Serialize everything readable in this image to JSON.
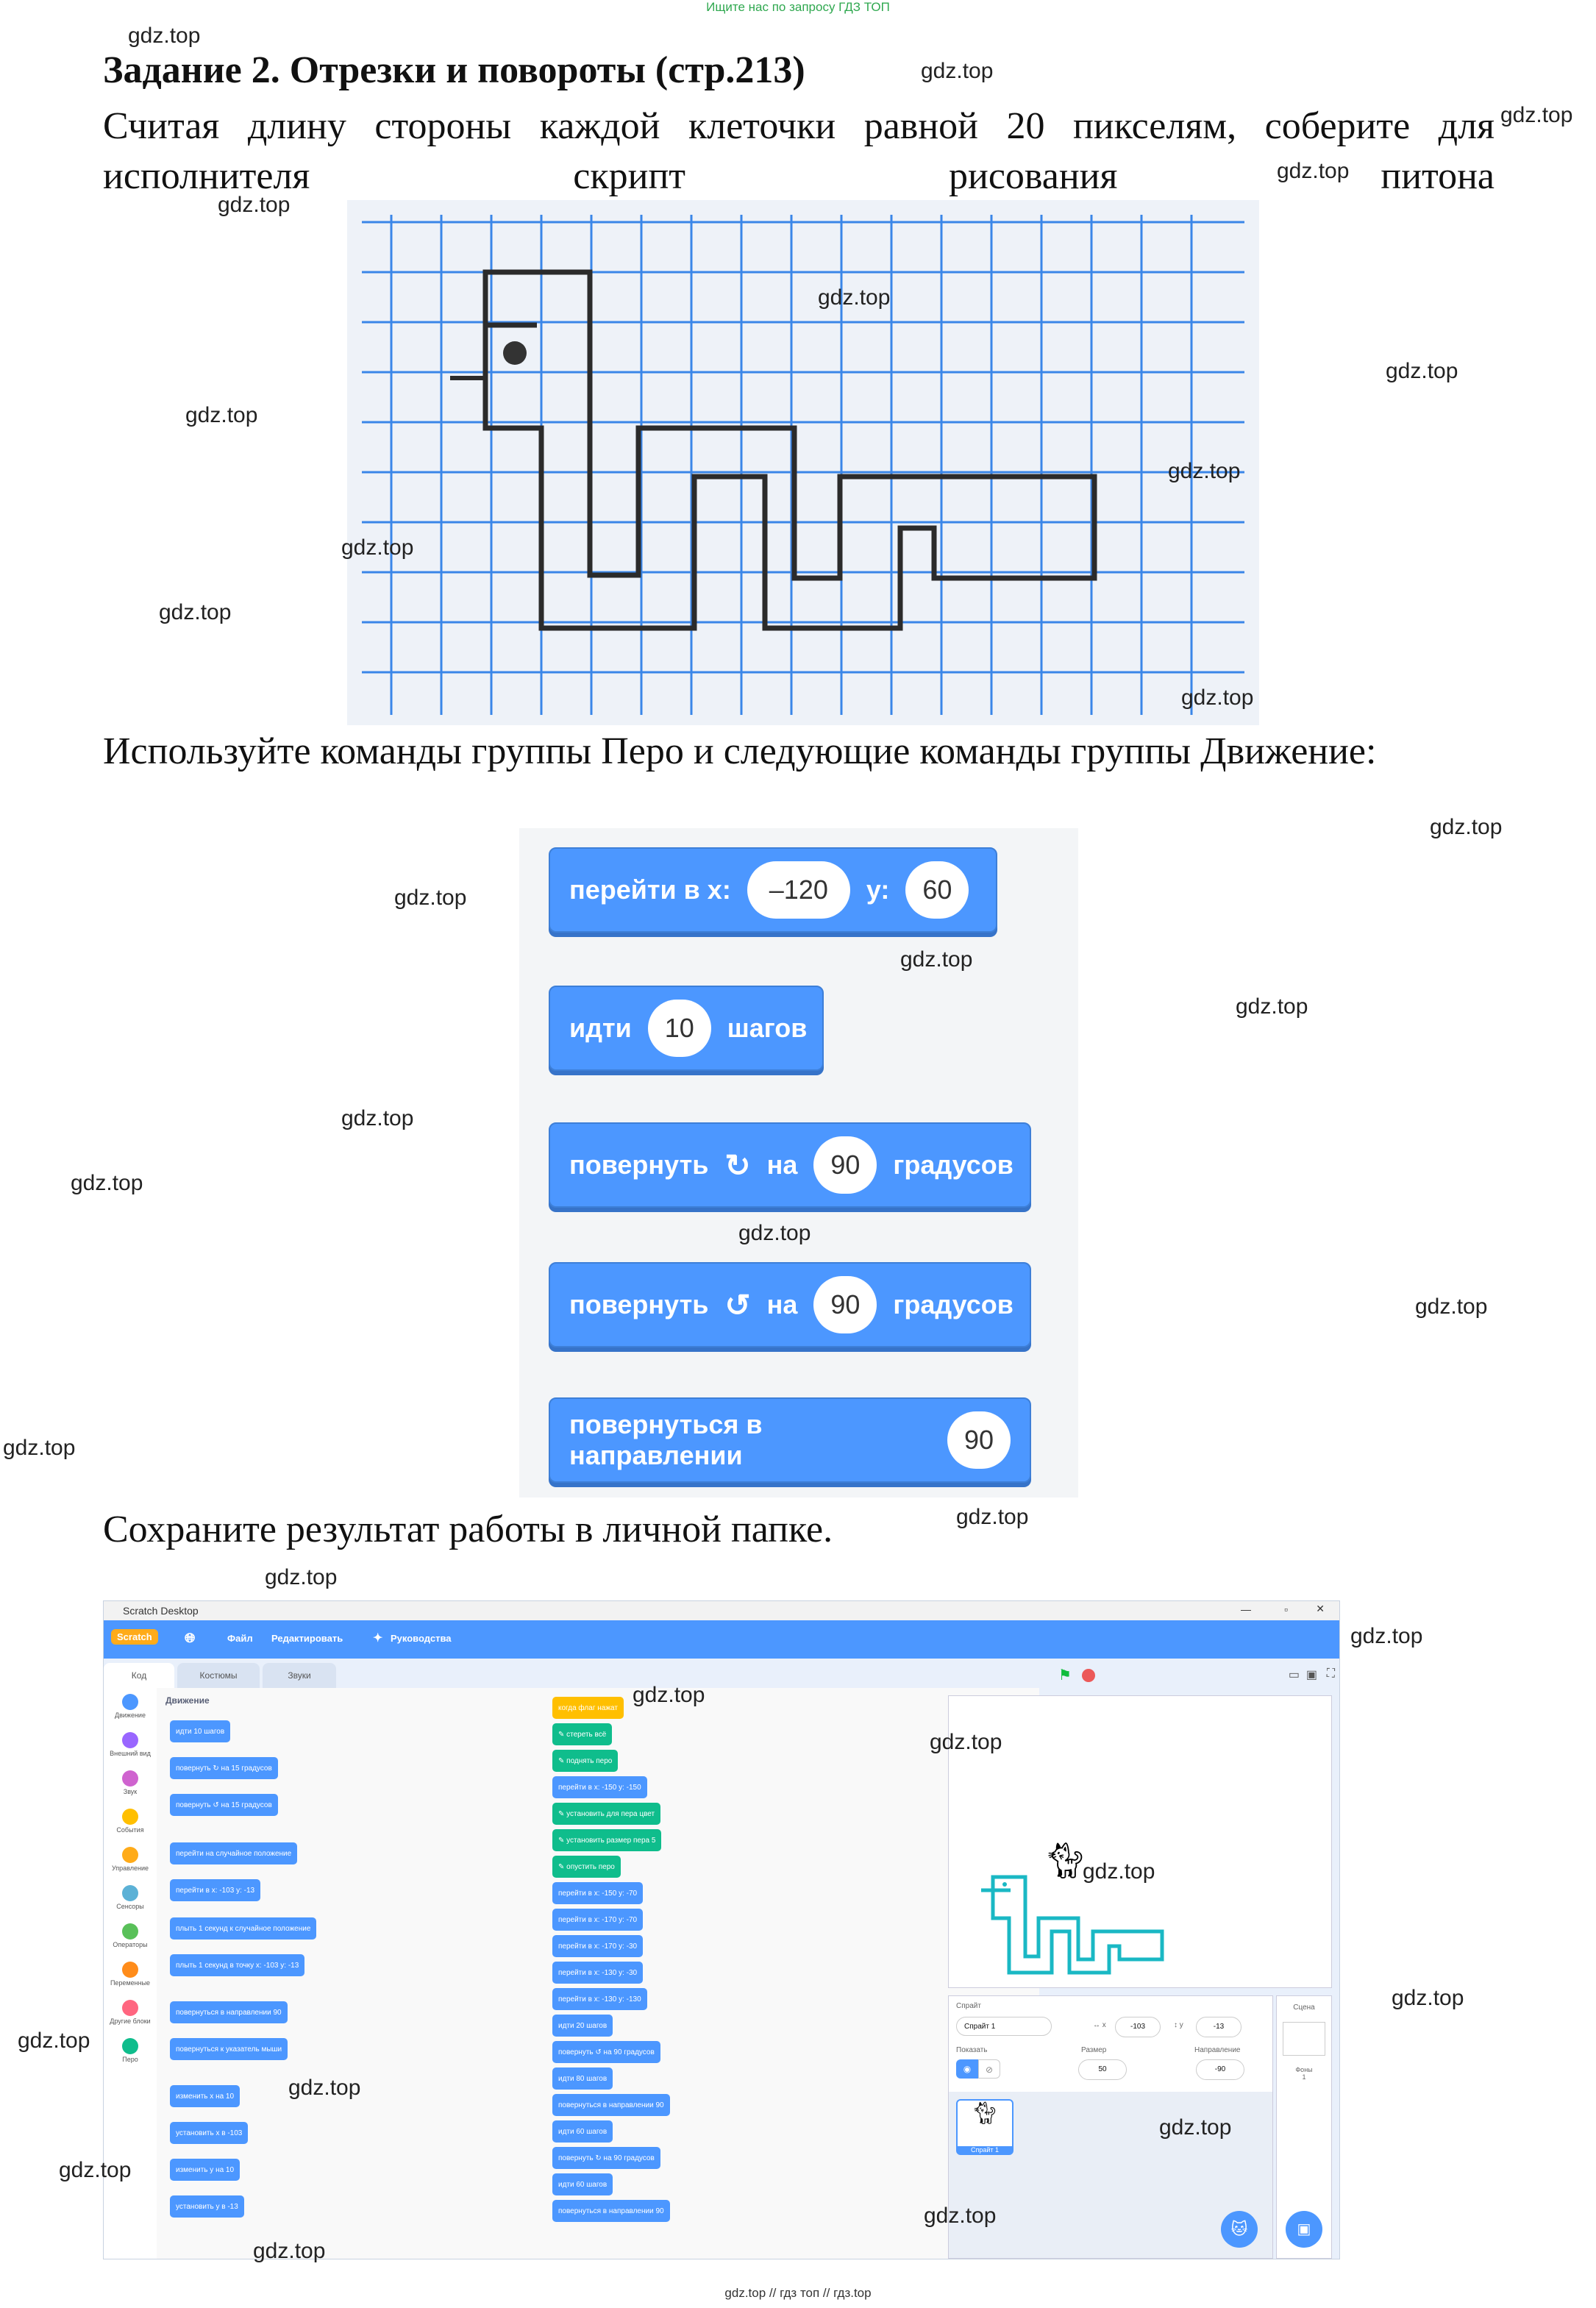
{
  "top_banner": "Ищите нас по запросу ГДЗ ТОП",
  "bottom_banner": "gdz.top // гдз топ // гдз.top",
  "watermark": "gdz.top",
  "title": "Задание 2. Отрезки и повороты (стр.213)",
  "intro_text": "Считая длину стороны каждой клеточки равной 20 пикселям, соберите для исполнителя скрипт рисования питона",
  "commands_text": "Используйте команды группы Перо и следующие команды группы Движение:",
  "save_text": "Сохраните результат работы в личной папке.",
  "blocks": {
    "goto": {
      "label": "перейти в х:",
      "x": "–120",
      "ylabel": "у:",
      "y": "60"
    },
    "move": {
      "label": "идти",
      "steps": "10",
      "unit": "шагов"
    },
    "turn_right": {
      "label": "повернуть",
      "icon": "↻",
      "on": "на",
      "deg": "90",
      "unit": "градусов"
    },
    "turn_left": {
      "label": "повернуть",
      "icon": "↺",
      "on": "на",
      "deg": "90",
      "unit": "градусов"
    },
    "point": {
      "label": "повернуться в направлении",
      "dir": "90"
    }
  },
  "scratch": {
    "window_title": "Scratch Desktop",
    "menu": {
      "file": "Файл",
      "edit": "Редактировать",
      "tutorials": "Руководства",
      "logo": "Scratch"
    },
    "tabs": {
      "code": "Код",
      "costumes": "Костюмы",
      "sounds": "Звуки"
    },
    "categories": [
      {
        "label": "Движение",
        "color": "#4c97ff"
      },
      {
        "label": "Внешний вид",
        "color": "#9966ff"
      },
      {
        "label": "Звук",
        "color": "#cf63cf"
      },
      {
        "label": "События",
        "color": "#ffbf00"
      },
      {
        "label": "Управление",
        "color": "#ffab19"
      },
      {
        "label": "Сенсоры",
        "color": "#5cb1d6"
      },
      {
        "label": "Операторы",
        "color": "#59c059"
      },
      {
        "label": "Переменные",
        "color": "#ff8c1a"
      },
      {
        "label": "Другие блоки",
        "color": "#ff6680"
      },
      {
        "label": "Перо",
        "color": "#0fbd8c"
      }
    ],
    "palette_heading": "Движение",
    "palette_blocks": [
      "идти 10 шагов",
      "повернуть ↻ на 15 градусов",
      "повернуть ↺ на 15 градусов",
      "перейти на случайное положение",
      "перейти в x: -103 y: -13",
      "плыть 1 секунд к случайное положение",
      "плыть 1 секунд в точку x: -103 y: -13",
      "повернуться в направлении 90",
      "повернуться к указатель мыши",
      "изменить x на 10",
      "установить x в -103",
      "изменить y на 10",
      "установить y в -13"
    ],
    "script": [
      "когда флаг нажат",
      "стереть всё",
      "поднять перо",
      "перейти в x: -150 y: -150",
      "установить для пера цвет",
      "установить размер пера 5",
      "опустить перо",
      "перейти в x: -150 y: -70",
      "перейти в x: -170 y: -70",
      "перейти в x: -170 y: -30",
      "перейти в x: -130 y: -30",
      "перейти в x: -130 y: -130",
      "идти 20 шагов",
      "повернуть ↺ на 90 градусов",
      "идти 80 шагов",
      "повернуться в направлении 90",
      "идти 60 шагов",
      "повернуть ↻ на 90 градусов",
      "идти 60 шагов",
      "повернуться в направлении 90"
    ],
    "sprite": {
      "label": "Спрайт",
      "name": "Спрайт 1",
      "x": "-103",
      "y": "-13",
      "show": "Показать",
      "size_label": "Размер",
      "size": "50",
      "dir_label": "Направление",
      "dir": "-90",
      "thumb_name": "Спрайт 1"
    },
    "scene": {
      "label": "Сцена",
      "backdrops_label": "Фоны",
      "backdrops": "1"
    }
  }
}
